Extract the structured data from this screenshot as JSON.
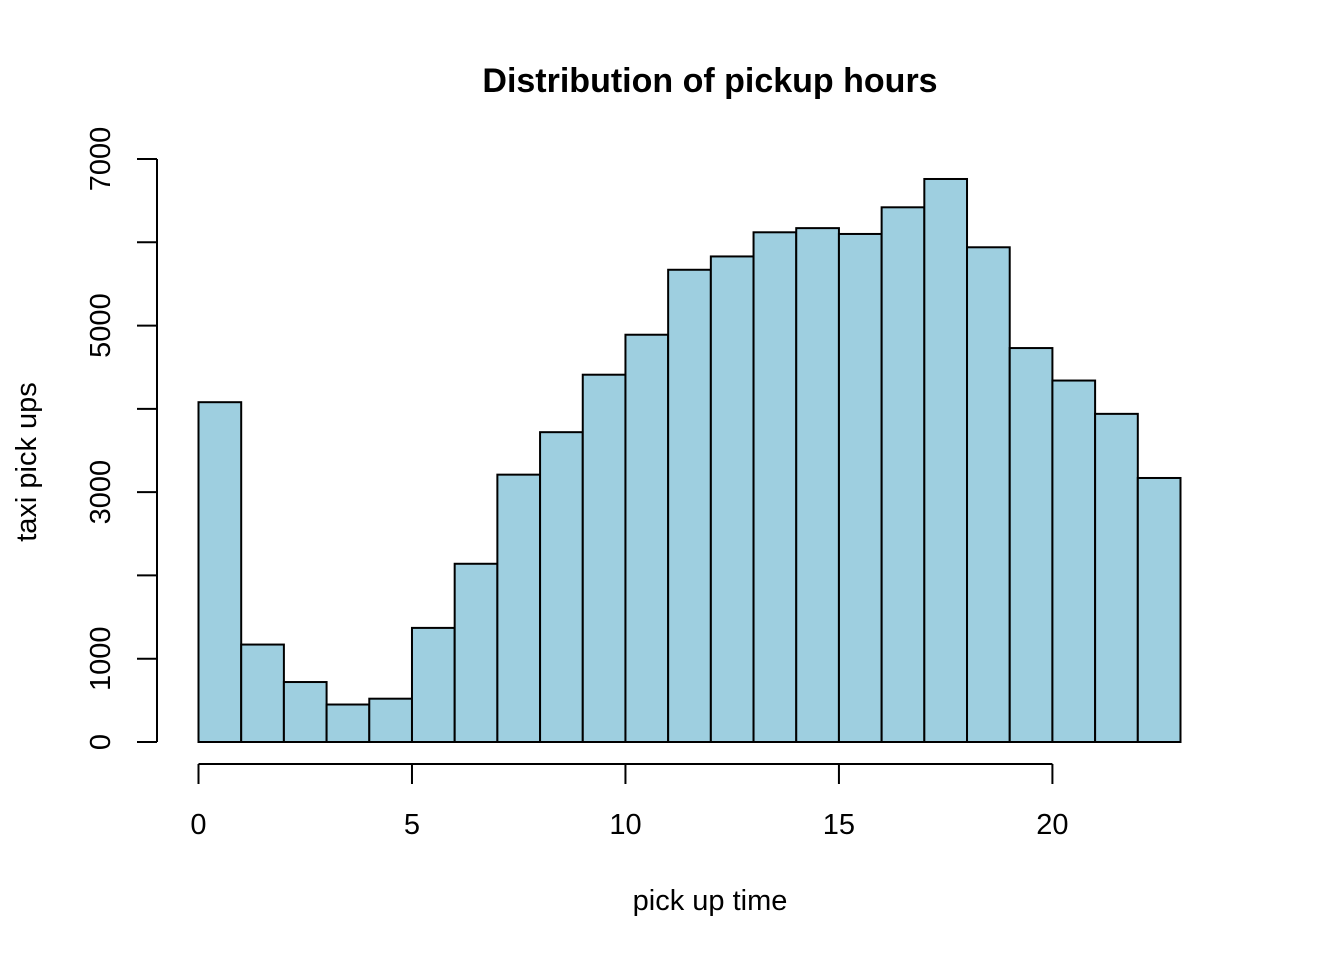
{
  "chart_data": {
    "type": "bar",
    "title": "Distribution of pickup hours",
    "xlabel": "pick up time",
    "ylabel": "taxi pick ups",
    "bin_edges": [
      0,
      1,
      2,
      3,
      4,
      5,
      6,
      7,
      8,
      9,
      10,
      11,
      12,
      13,
      14,
      15,
      16,
      17,
      18,
      19,
      20,
      21,
      22,
      23
    ],
    "values": [
      4080,
      1170,
      720,
      450,
      520,
      1370,
      2140,
      3210,
      3720,
      4410,
      4890,
      5670,
      5830,
      6120,
      6170,
      6100,
      6420,
      6760,
      5940,
      4730,
      4340,
      3940,
      3170
    ],
    "bar_color": "#9ECFE0",
    "xlim": [
      0,
      23
    ],
    "ylim": [
      0,
      7000
    ],
    "x_ticks": [
      0,
      5,
      10,
      15,
      20
    ],
    "x_tick_labels": [
      "0",
      "5",
      "10",
      "15",
      "20"
    ],
    "y_ticks": [
      0,
      1000,
      2000,
      3000,
      4000,
      5000,
      6000,
      7000
    ],
    "y_tick_labels": [
      "0",
      "1000",
      "",
      "3000",
      "",
      "5000",
      "",
      "7000"
    ],
    "grid": false,
    "legend": "none"
  }
}
